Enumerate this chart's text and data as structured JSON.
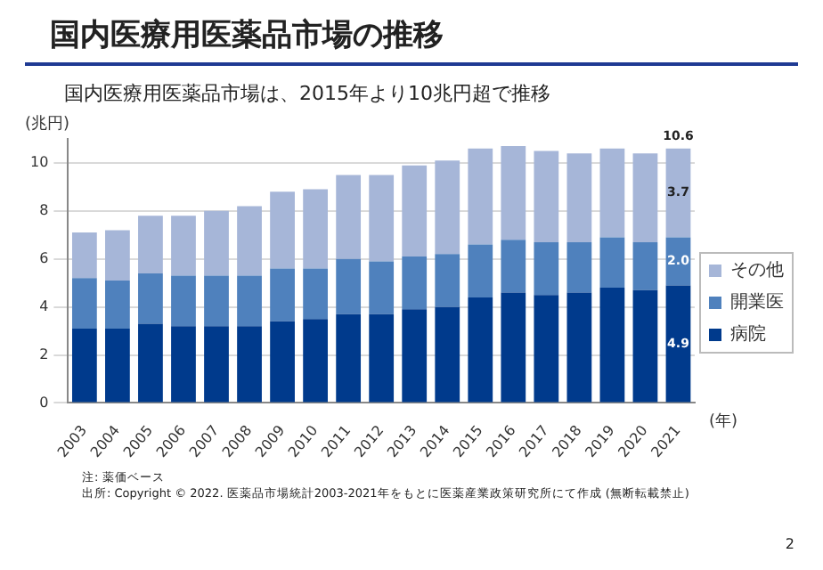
{
  "chart_data": {
    "type": "bar",
    "title": "国内医療用医薬品市場の推移",
    "subtitle": "国内医療用医薬品市場は、2015年より10兆円超で推移",
    "ylabel": "(兆円)",
    "xlabel": "(年)",
    "categories": [
      "2003",
      "2004",
      "2005",
      "2006",
      "2007",
      "2008",
      "2009",
      "2010",
      "2011",
      "2012",
      "2013",
      "2014",
      "2015",
      "2016",
      "2017",
      "2018",
      "2019",
      "2020",
      "2021"
    ],
    "series": [
      {
        "name": "病院",
        "color": "#003a8c",
        "values": [
          3.1,
          3.1,
          3.3,
          3.2,
          3.2,
          3.2,
          3.4,
          3.5,
          3.7,
          3.7,
          3.9,
          4.0,
          4.4,
          4.6,
          4.5,
          4.6,
          4.8,
          4.7,
          4.9
        ],
        "value_labels": [
          null,
          null,
          null,
          null,
          null,
          null,
          null,
          null,
          null,
          null,
          null,
          null,
          null,
          null,
          null,
          null,
          null,
          null,
          "4.9"
        ]
      },
      {
        "name": "開業医",
        "color": "#4f81bd",
        "values": [
          2.1,
          2.0,
          2.1,
          2.1,
          2.1,
          2.1,
          2.2,
          2.1,
          2.3,
          2.2,
          2.2,
          2.2,
          2.2,
          2.2,
          2.2,
          2.1,
          2.1,
          2.0,
          2.0
        ],
        "value_labels": [
          null,
          null,
          null,
          null,
          null,
          null,
          null,
          null,
          null,
          null,
          null,
          null,
          null,
          null,
          null,
          null,
          null,
          null,
          "2.0"
        ]
      },
      {
        "name": "その他",
        "color": "#a6b6d8",
        "values": [
          1.9,
          2.1,
          2.4,
          2.5,
          2.7,
          2.9,
          3.2,
          3.3,
          3.5,
          3.6,
          3.8,
          3.9,
          4.0,
          3.9,
          3.8,
          3.7,
          3.7,
          3.7,
          3.7
        ],
        "value_labels": [
          null,
          null,
          null,
          null,
          null,
          null,
          null,
          null,
          null,
          null,
          null,
          null,
          null,
          null,
          null,
          null,
          null,
          null,
          "3.7"
        ]
      }
    ],
    "totals": [
      null,
      null,
      null,
      null,
      null,
      null,
      null,
      null,
      null,
      null,
      null,
      null,
      null,
      null,
      null,
      null,
      null,
      null,
      "10.6"
    ],
    "stacked": true,
    "ylim": [
      0,
      11
    ],
    "yticks": [
      0,
      2,
      4,
      6,
      8,
      10
    ],
    "grid": "y",
    "legend": "right",
    "annotations": [
      "注: 薬価ベース",
      "出所: Copyright © 2022. 医薬品市場統計2003-2021年をもとに医薬産業政策研究所にて作成 (無断転載禁止)",
      "2"
    ]
  }
}
